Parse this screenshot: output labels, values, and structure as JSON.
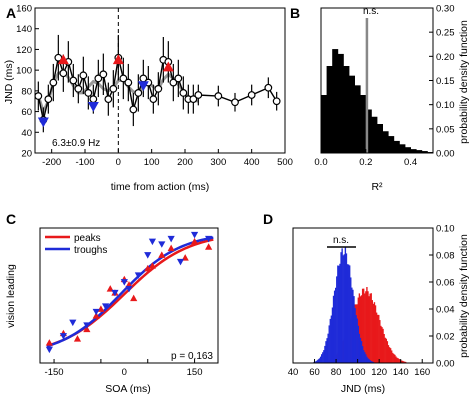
{
  "colors": {
    "peak": "#e8191b",
    "trough": "#1f2bd8",
    "fit": "#999999",
    "data": "#000000",
    "ref": "#888888"
  },
  "chart_data": [
    {
      "panel": "A",
      "type": "line",
      "xlabel": "time from action (ms)",
      "ylabel": "JND (ms)",
      "xlim": [
        -250,
        500
      ],
      "ylim": [
        20,
        160
      ],
      "xticks": [
        -200,
        -100,
        0,
        100,
        200,
        300,
        400,
        500
      ],
      "yticks": [
        20,
        40,
        60,
        80,
        100,
        120,
        140,
        160
      ],
      "vline_x": 0,
      "annotation": "6.3±0.9 Hz",
      "series": [
        {
          "x": [
            -240,
            -225,
            -210,
            -195,
            -180,
            -165,
            -150,
            -135,
            -120,
            -105,
            -90,
            -75,
            -60,
            -45,
            -30,
            -15,
            0,
            15,
            30,
            45,
            60,
            75,
            90,
            105,
            120,
            135,
            150,
            165,
            180,
            195,
            210,
            225,
            240,
            300,
            350,
            400,
            450,
            475
          ],
          "values": [
            75,
            52,
            72,
            88,
            112,
            97,
            108,
            90,
            82,
            95,
            78,
            72,
            92,
            96,
            72,
            82,
            112,
            92,
            88,
            62,
            78,
            92,
            88,
            72,
            82,
            110,
            108,
            88,
            92,
            78,
            72,
            72,
            76,
            75,
            69,
            76,
            83,
            70
          ],
          "errors": [
            14,
            12,
            14,
            18,
            22,
            18,
            20,
            16,
            14,
            18,
            16,
            14,
            18,
            20,
            16,
            18,
            22,
            20,
            18,
            16,
            18,
            18,
            16,
            14,
            16,
            22,
            20,
            18,
            18,
            16,
            14,
            14,
            10,
            10,
            9,
            10,
            10,
            9
          ]
        },
        {
          "x": [
            -240,
            -225,
            -210,
            -195,
            -180,
            -165,
            -150,
            -135,
            -120,
            -105,
            -90,
            -75,
            -60,
            -45,
            -30,
            -15,
            0,
            15,
            30,
            45,
            60,
            75,
            90,
            105,
            120,
            135,
            150,
            165,
            180,
            195,
            210,
            225,
            240
          ],
          "values": [
            75,
            60,
            70,
            88,
            97,
            99,
            93,
            85,
            78,
            78,
            84,
            89,
            87,
            82,
            80,
            83,
            90,
            90,
            84,
            79,
            78,
            84,
            88,
            84,
            82,
            91,
            96,
            92,
            86,
            80,
            74,
            71,
            70
          ]
        }
      ],
      "peaks": [
        [
          -165,
          110
        ],
        [
          0,
          110
        ],
        [
          150,
          103
        ]
      ],
      "troughs": [
        [
          -225,
          50
        ],
        [
          -75,
          65
        ],
        [
          75,
          85
        ]
      ]
    },
    {
      "panel": "B",
      "type": "bar",
      "xlabel": "R²",
      "ylabel": "probability density function",
      "xlim": [
        0,
        0.5
      ],
      "ylim": [
        0,
        0.3
      ],
      "xticks": [
        0.0,
        0.2,
        0.4
      ],
      "yticks": [
        0.0,
        0.05,
        0.1,
        0.15,
        0.2,
        0.25,
        0.3
      ],
      "bin_width": 0.025,
      "values": [
        0.12,
        0.18,
        0.215,
        0.205,
        0.18,
        0.16,
        0.14,
        0.12,
        0.09,
        0.075,
        0.06,
        0.045,
        0.035,
        0.025,
        0.018,
        0.012,
        0.008,
        0.006,
        0.004,
        0.002
      ],
      "ref_x": 0.205,
      "annotation": "n.s."
    },
    {
      "panel": "C",
      "type": "scatter",
      "xlabel": "SOA (ms)",
      "ylabel": "vision leading",
      "xlim": [
        -180,
        200
      ],
      "ylim": [
        0,
        1
      ],
      "xticks": [
        -150,
        -50,
        50,
        150
      ],
      "xtick_labels": [
        "-150",
        "0",
        "150"
      ],
      "xtick_label_at": [
        -150,
        0,
        150
      ],
      "annotation": "p = 0.163",
      "series": [
        {
          "name": "peaks",
          "x": [
            -160,
            -130,
            -100,
            -80,
            -60,
            -50,
            -30,
            -20,
            0,
            10,
            20,
            50,
            60,
            80,
            100,
            130,
            150,
            180
          ],
          "values": [
            0.15,
            0.22,
            0.18,
            0.25,
            0.35,
            0.4,
            0.55,
            0.52,
            0.62,
            0.58,
            0.48,
            0.7,
            0.72,
            0.8,
            0.85,
            0.78,
            0.9,
            0.86
          ]
        },
        {
          "name": "troughs",
          "x": [
            -160,
            -130,
            -110,
            -80,
            -60,
            -40,
            -20,
            0,
            10,
            30,
            50,
            60,
            80,
            100,
            120,
            150,
            180
          ],
          "values": [
            0.1,
            0.2,
            0.3,
            0.28,
            0.38,
            0.42,
            0.52,
            0.6,
            0.55,
            0.65,
            0.8,
            0.9,
            0.88,
            0.92,
            0.75,
            0.95,
            0.92
          ]
        }
      ],
      "fits": [
        {
          "name": "peaks",
          "x0": 0,
          "k": 0.0145
        },
        {
          "name": "troughs",
          "x0": -8,
          "k": 0.0155
        }
      ]
    },
    {
      "panel": "D",
      "type": "bar",
      "xlabel": "JND (ms)",
      "ylabel": "probability density function",
      "xlim": [
        40,
        170
      ],
      "ylim": [
        0,
        0.1
      ],
      "xticks": [
        40,
        60,
        80,
        100,
        120,
        140,
        160
      ],
      "yticks": [
        0.0,
        0.02,
        0.04,
        0.06,
        0.08,
        0.1
      ],
      "annotation": "n.s.",
      "series": [
        {
          "name": "red",
          "mean": 107,
          "sd": 13,
          "peak": 0.054
        },
        {
          "name": "blue",
          "mean": 87,
          "sd": 9,
          "peak": 0.083
        }
      ]
    }
  ]
}
